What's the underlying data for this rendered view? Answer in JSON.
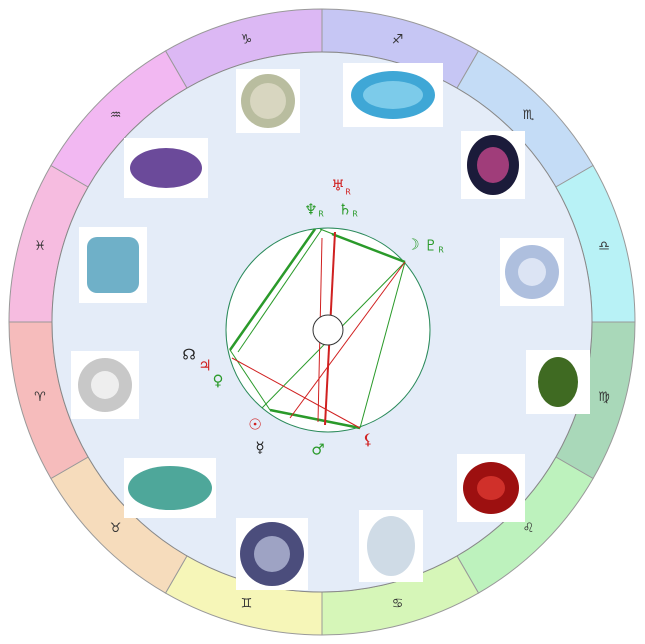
{
  "signs": [
    {
      "glyph": "♑",
      "color": "#dcb8f4"
    },
    {
      "glyph": "♐",
      "color": "#c6c6f4"
    },
    {
      "glyph": "♏",
      "color": "#c4dcf6"
    },
    {
      "glyph": "♎",
      "color": "#b8f2f6"
    },
    {
      "glyph": "♍",
      "color": "#a9d8b9"
    },
    {
      "glyph": "♌",
      "color": "#bdf2bd"
    },
    {
      "glyph": "♋",
      "color": "#d6f6b8"
    },
    {
      "glyph": "♊",
      "color": "#f6f6b8"
    },
    {
      "glyph": "♉",
      "color": "#f6dcbc"
    },
    {
      "glyph": "♈",
      "color": "#f6bcbc"
    },
    {
      "glyph": "♓",
      "color": "#f6bce0"
    },
    {
      "glyph": "♒",
      "color": "#f2b8f2"
    }
  ],
  "planets": {
    "uranus": {
      "glyph": "♅",
      "retro": "R"
    },
    "neptune": {
      "glyph": "♆",
      "retro": "R"
    },
    "saturn": {
      "glyph": "♄",
      "retro": "R"
    },
    "moon": {
      "glyph": "☽"
    },
    "pluto": {
      "glyph": "♇",
      "retro": "R"
    },
    "node": {
      "glyph": "☊"
    },
    "jupiter": {
      "glyph": "♃"
    },
    "venus": {
      "glyph": "♀"
    },
    "sun": {
      "glyph": "☉"
    },
    "mercury": {
      "glyph": "☿"
    },
    "mars": {
      "glyph": "♂"
    },
    "lilith": {
      "glyph": "⚸"
    }
  }
}
